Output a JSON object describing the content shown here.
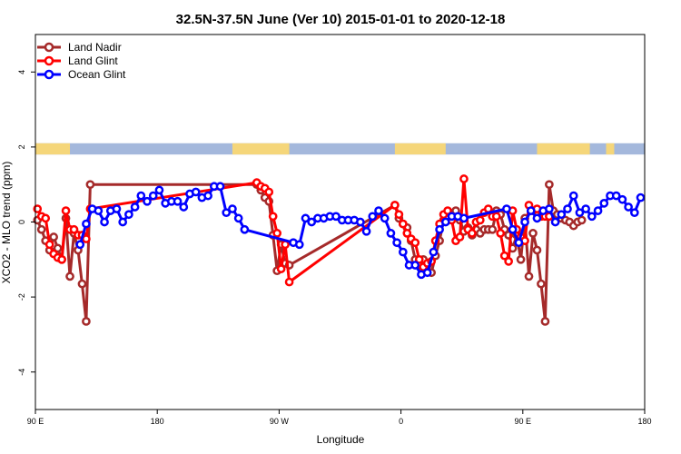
{
  "chart_data": {
    "type": "line",
    "title": "32.5N-37.5N June (Ver 10)   2015-01-01 to 2020-12-18",
    "xlabel": "Longitude",
    "ylabel": "XCO2 - MLO trend (ppm)",
    "xlim": [
      30,
      330
    ],
    "ylim": [
      -5,
      5
    ],
    "x_ticks": [
      {
        "value": 30,
        "label": "90 E"
      },
      {
        "value": 90,
        "label": "180"
      },
      {
        "value": 150,
        "label": "90 W"
      },
      {
        "value": 210,
        "label": "0"
      },
      {
        "value": 270,
        "label": "90 E"
      },
      {
        "value": 330,
        "label": "180"
      }
    ],
    "y_ticks": [
      {
        "value": -4,
        "label": "-4"
      },
      {
        "value": -2,
        "label": "-2"
      },
      {
        "value": 0,
        "label": "0"
      },
      {
        "value": 2,
        "label": "2"
      },
      {
        "value": 4,
        "label": "4"
      }
    ],
    "legend_position": "top-left",
    "land_mask_band": {
      "y_min": 1.8,
      "y_max": 2.1,
      "land_color": "#F5D67A",
      "ocean_color": "#A4B8DC"
    },
    "land_segments": [
      [
        30,
        47
      ],
      [
        127,
        155
      ],
      [
        207,
        232
      ],
      [
        277,
        303
      ],
      [
        311,
        315
      ]
    ],
    "series": [
      {
        "name": "Land Nadir",
        "color": "#A52A2A",
        "x": [
          31,
          33,
          35,
          37,
          39,
          41,
          43,
          45,
          47,
          49,
          51,
          53,
          55,
          57,
          139,
          141,
          143,
          145,
          147,
          149,
          151,
          153,
          155,
          207,
          209,
          211,
          213,
          215,
          217,
          219,
          221,
          223,
          225,
          227,
          229,
          231,
          233,
          235,
          237,
          239,
          241,
          243,
          245,
          247,
          249,
          251,
          253,
          255,
          257,
          259,
          261,
          263,
          265,
          267,
          269,
          271,
          273,
          275,
          277,
          279,
          281,
          283,
          285,
          287,
          289,
          291,
          293,
          295,
          297,
          299
        ],
        "values": [
          0.05,
          -0.2,
          -0.5,
          -0.75,
          -0.4,
          -0.7,
          -1.0,
          0.1,
          -1.45,
          -0.3,
          -0.75,
          -1.65,
          -2.65,
          1.0,
          1.0,
          0.85,
          0.65,
          0.55,
          -0.35,
          -1.3,
          -0.6,
          -1.1,
          -1.15,
          0.45,
          0.1,
          -0.05,
          -0.15,
          -0.5,
          -1.0,
          -1.15,
          -1.0,
          -1.15,
          -1.35,
          -0.9,
          -0.5,
          0.05,
          0.1,
          0.2,
          0.3,
          0.05,
          -0.25,
          -0.15,
          -0.35,
          -0.2,
          -0.3,
          -0.2,
          -0.2,
          -0.2,
          0.3,
          0.2,
          -0.2,
          -0.35,
          -0.7,
          -0.35,
          -1.0,
          0.1,
          -1.45,
          -0.3,
          -0.75,
          -1.65,
          -2.65,
          1.0,
          0.3,
          0.2,
          0.1,
          0.05,
          0.0,
          -0.1,
          0.0,
          0.05
        ]
      },
      {
        "name": "Land Glint",
        "color": "#FF0000",
        "x": [
          31,
          33,
          35,
          37,
          39,
          41,
          43,
          45,
          47,
          49,
          51,
          53,
          55,
          57,
          139,
          141,
          143,
          145,
          147,
          149,
          151,
          153,
          155,
          207,
          209,
          211,
          213,
          215,
          217,
          219,
          221,
          223,
          225,
          227,
          229,
          231,
          233,
          235,
          237,
          239,
          241,
          243,
          245,
          247,
          249,
          251,
          253,
          255,
          257,
          259,
          261,
          263,
          265,
          267,
          269,
          271,
          273,
          275,
          277,
          279,
          281,
          283
        ],
        "values": [
          0.35,
          0.15,
          0.1,
          -0.6,
          -0.85,
          -0.95,
          -1.0,
          0.3,
          -0.2,
          -0.2,
          -0.35,
          -0.35,
          -0.45,
          0.35,
          1.05,
          0.95,
          0.9,
          0.8,
          0.15,
          -0.3,
          -1.25,
          -0.6,
          -1.6,
          0.45,
          0.2,
          -0.05,
          -0.3,
          -0.45,
          -0.55,
          -1.0,
          -1.2,
          -1.1,
          -1.05,
          -0.5,
          -0.05,
          0.2,
          0.3,
          0.05,
          -0.5,
          -0.4,
          1.15,
          -0.2,
          -0.3,
          0.0,
          0.05,
          0.25,
          0.35,
          0.15,
          0.15,
          -0.3,
          -0.9,
          -1.05,
          0.3,
          -0.2,
          -0.4,
          -0.5,
          0.45,
          0.3,
          0.35,
          0.15,
          0.15,
          0.15
        ]
      },
      {
        "name": "Ocean Glint",
        "color": "#0000FF",
        "x": [
          52,
          55,
          58,
          61,
          64,
          67,
          70,
          73,
          76,
          79,
          82,
          85,
          88,
          91,
          94,
          97,
          100,
          103,
          106,
          109,
          112,
          115,
          118,
          121,
          124,
          127,
          130,
          133,
          157,
          160,
          163,
          166,
          169,
          172,
          175,
          178,
          181,
          184,
          187,
          190,
          193,
          196,
          199,
          202,
          205,
          208,
          211,
          214,
          217,
          220,
          223,
          226,
          229,
          232,
          235,
          238,
          241,
          262,
          265,
          268,
          271,
          274,
          277,
          280,
          283,
          286,
          289,
          292,
          295,
          298,
          301,
          304,
          307,
          310,
          313,
          316,
          319,
          322,
          325,
          328
        ],
        "values": [
          -0.6,
          -0.05,
          0.35,
          0.3,
          0.0,
          0.3,
          0.35,
          0.0,
          0.2,
          0.4,
          0.7,
          0.55,
          0.7,
          0.85,
          0.5,
          0.55,
          0.55,
          0.4,
          0.75,
          0.8,
          0.65,
          0.7,
          0.95,
          0.95,
          0.25,
          0.35,
          0.1,
          -0.2,
          -0.55,
          -0.6,
          0.1,
          0.0,
          0.1,
          0.1,
          0.15,
          0.15,
          0.05,
          0.05,
          0.05,
          0.0,
          -0.25,
          0.15,
          0.3,
          0.1,
          -0.3,
          -0.55,
          -0.8,
          -1.15,
          -1.15,
          -1.4,
          -1.35,
          -0.8,
          -0.2,
          0.0,
          0.15,
          0.15,
          0.1,
          0.35,
          -0.2,
          -0.55,
          0.0,
          0.3,
          0.1,
          0.3,
          0.35,
          0.0,
          0.2,
          0.35,
          0.7,
          0.25,
          0.35,
          0.15,
          0.3,
          0.5,
          0.7,
          0.7,
          0.6,
          0.4,
          0.25,
          0.65
        ]
      }
    ]
  }
}
